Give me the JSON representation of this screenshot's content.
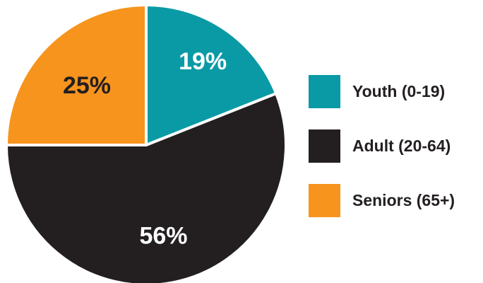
{
  "chart_data": {
    "type": "pie",
    "slices": [
      {
        "label": "Youth (0-19)",
        "value": 19,
        "display": "19%",
        "color": "#0a9aa6",
        "label_color": "#ffffff"
      },
      {
        "label": "Adult (20-64)",
        "value": 56,
        "display": "56%",
        "color": "#231f20",
        "label_color": "#ffffff"
      },
      {
        "label": "Seniors (65+)",
        "value": 25,
        "display": "25%",
        "color": "#f7941d",
        "label_color": "#231f20"
      }
    ],
    "legend_position": "right"
  }
}
